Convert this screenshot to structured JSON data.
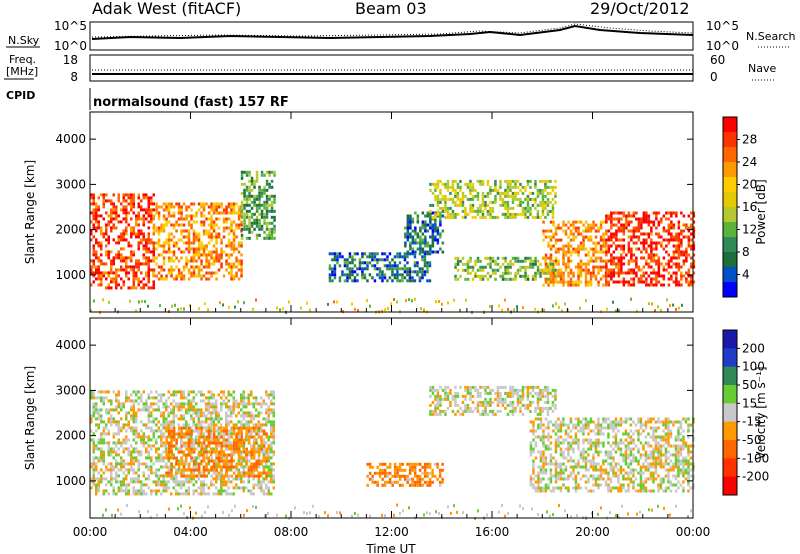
{
  "header": {
    "station": "Adak West (fitACF)",
    "beam": "Beam 03",
    "date": "29/Oct/2012"
  },
  "noise_panel": {
    "left_label": "N.Sky",
    "right_label": "N.Search",
    "left_ticks": [
      "10^5",
      "10^0"
    ],
    "right_ticks": [
      "10^5",
      "10^0"
    ]
  },
  "freq_panel": {
    "left_label_1": "Freq.",
    "left_label_2": "[MHz]",
    "right_label": "Nave",
    "left_ticks": [
      "18",
      "8"
    ],
    "right_ticks": [
      "60",
      "0"
    ]
  },
  "cpid": {
    "label": "CPID",
    "value": "normalsound (fast) 157 RF"
  },
  "power_colorbar": {
    "label": "Power [dB]",
    "ticks": [
      "28",
      "24",
      "20",
      "16",
      "12",
      "8",
      "4"
    ],
    "colors": [
      "#ff0000",
      "#ff3300",
      "#ff6600",
      "#ff9900",
      "#ffcc00",
      "#e6c800",
      "#b4c832",
      "#5ab43c",
      "#2e8b57",
      "#1e6e3c",
      "#0050c8",
      "#0000ff"
    ]
  },
  "velocity_colorbar": {
    "label": "Velocity [m s⁻¹]",
    "ticks": [
      "200",
      "100",
      "50",
      "15",
      "-15",
      "-50",
      "-100",
      "-200"
    ],
    "colors": [
      "#1a1aa8",
      "#1e3cc8",
      "#2e8b57",
      "#66cc33",
      "#c8c8c8",
      "#ff9900",
      "#ff6600",
      "#ff3300",
      "#ff0000"
    ]
  },
  "x_axis": {
    "label": "Time UT",
    "ticks": [
      "00:00",
      "04:00",
      "08:00",
      "12:00",
      "16:00",
      "20:00",
      "00:00"
    ]
  },
  "y_axis": {
    "label": "Slant Range [km]",
    "ticks": [
      "1000",
      "2000",
      "3000",
      "4000"
    ]
  },
  "chart_data": [
    {
      "type": "heatmap",
      "title": "",
      "xlabel": "Time UT",
      "ylabel": "Slant Range [km]",
      "colorbar_label": "Power [dB]",
      "xlim": [
        0,
        24
      ],
      "ylim": [
        180,
        4600
      ],
      "zlim": [
        0,
        30
      ],
      "bands": [
        {
          "t0": 0.0,
          "t1": 2.5,
          "r0": 700,
          "r1": 2800,
          "value": 26
        },
        {
          "t0": 2.5,
          "t1": 6.0,
          "r0": 900,
          "r1": 2600,
          "value": 22
        },
        {
          "t0": 6.0,
          "t1": 7.3,
          "r0": 1800,
          "r1": 3300,
          "value": 10
        },
        {
          "t0": 9.5,
          "t1": 13.5,
          "r0": 900,
          "r1": 1500,
          "value": 6
        },
        {
          "t0": 12.5,
          "t1": 14.0,
          "r0": 1500,
          "r1": 2400,
          "value": 6
        },
        {
          "t0": 13.5,
          "t1": 18.5,
          "r0": 2300,
          "r1": 3100,
          "value": 14
        },
        {
          "t0": 14.5,
          "t1": 18.5,
          "r0": 900,
          "r1": 1400,
          "value": 12
        },
        {
          "t0": 18.0,
          "t1": 20.5,
          "r0": 800,
          "r1": 2200,
          "value": 22
        },
        {
          "t0": 20.5,
          "t1": 24.0,
          "r0": 800,
          "r1": 2400,
          "value": 27
        }
      ]
    },
    {
      "type": "heatmap",
      "title": "",
      "xlabel": "Time UT",
      "ylabel": "Slant Range [km]",
      "colorbar_label": "Velocity [m s⁻¹]",
      "xlim": [
        0,
        24
      ],
      "ylim": [
        180,
        4600
      ],
      "zlim": [
        -200,
        200
      ],
      "bands": [
        {
          "t0": 0.0,
          "t1": 7.3,
          "r0": 700,
          "r1": 3000,
          "value": 0
        },
        {
          "t0": 3.0,
          "t1": 7.0,
          "r0": 1100,
          "r1": 2200,
          "value": -60
        },
        {
          "t0": 11.0,
          "t1": 14.0,
          "r0": 900,
          "r1": 1400,
          "value": -60
        },
        {
          "t0": 13.5,
          "t1": 18.5,
          "r0": 2500,
          "r1": 3100,
          "value": 0
        },
        {
          "t0": 17.5,
          "t1": 24.0,
          "r0": 800,
          "r1": 2400,
          "value": 0
        }
      ]
    }
  ]
}
